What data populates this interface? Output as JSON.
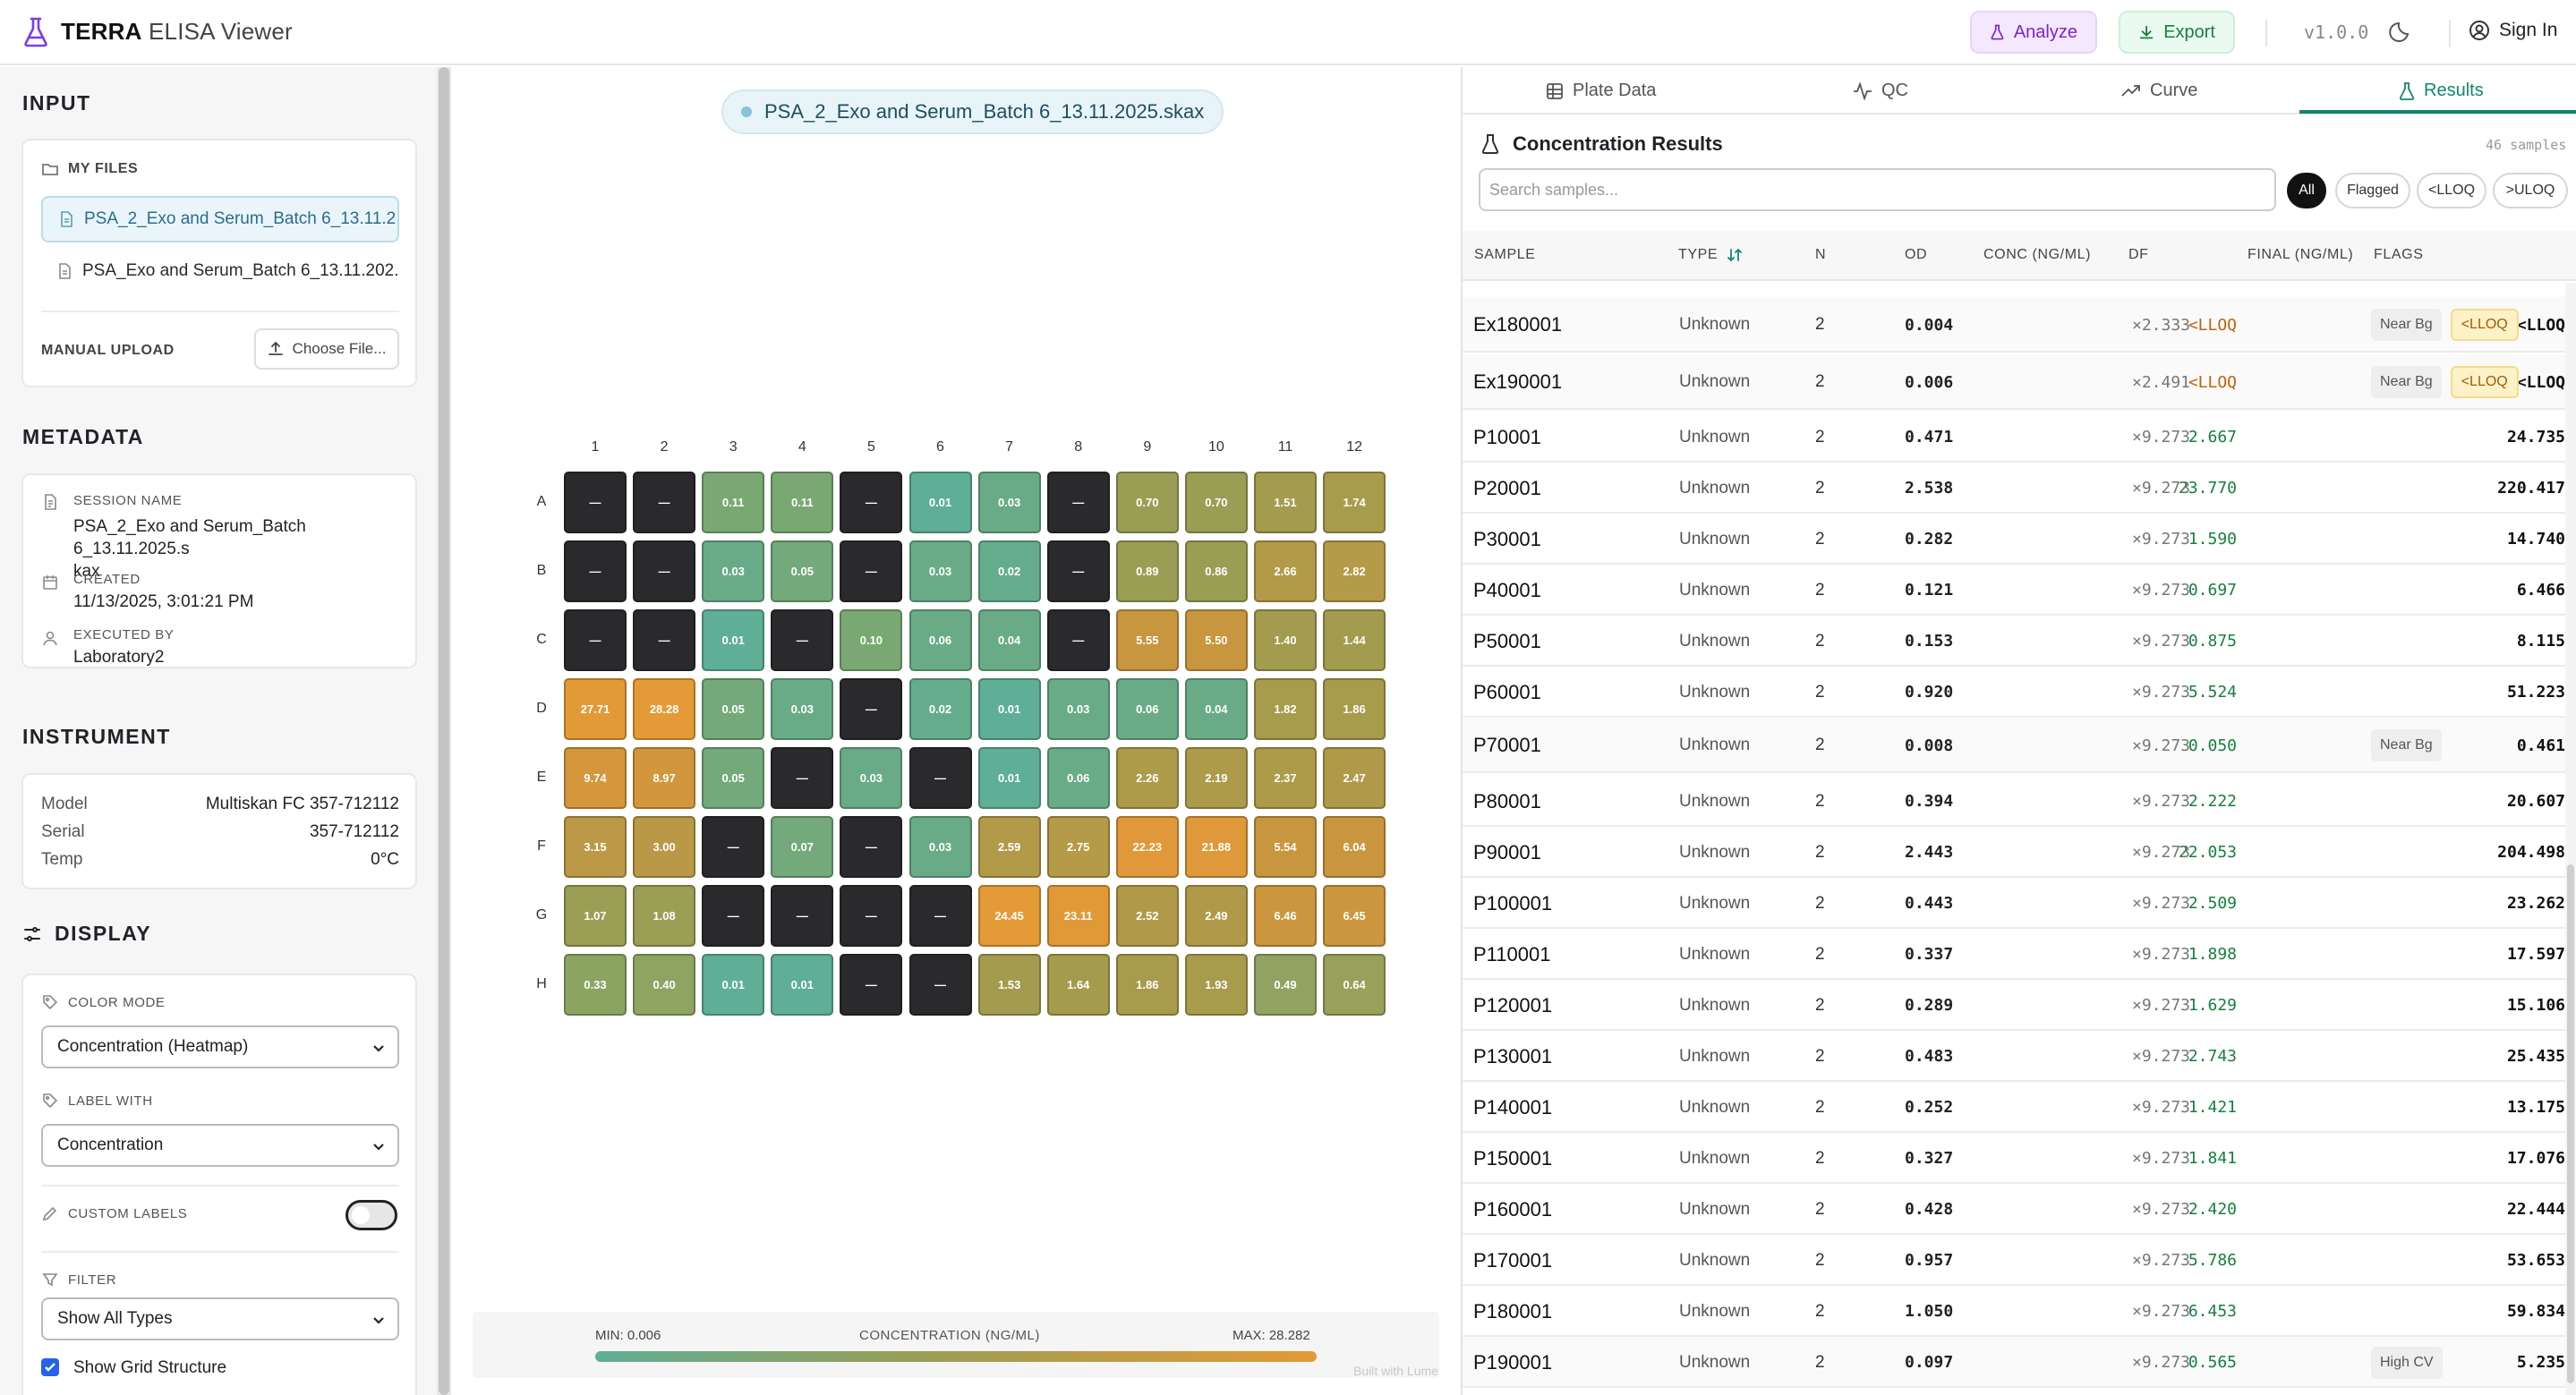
{
  "header": {
    "brand_bold": "TERRA",
    "brand_rest": "ELISA Viewer",
    "analyze_label": "Analyze",
    "export_label": "Export",
    "version": "v1.0.0",
    "signin_label": "Sign In"
  },
  "sidebar": {
    "input_title": "INPUT",
    "my_files_label": "MY FILES",
    "files": [
      {
        "name": "PSA_2_Exo and Serum_Batch 6_13.11.2...",
        "active": true
      },
      {
        "name": "PSA_Exo and Serum_Batch 6_13.11.202...",
        "active": false
      }
    ],
    "manual_upload_label": "MANUAL UPLOAD",
    "choose_file_label": "Choose File...",
    "metadata_title": "METADATA",
    "session_name_label": "SESSION NAME",
    "session_name_line1": "PSA_2_Exo and Serum_Batch 6_13.11.2025.s",
    "session_name_line2": "kax",
    "created_label": "CREATED",
    "created_value": "11/13/2025, 3:01:21 PM",
    "executed_by_label": "EXECUTED BY",
    "executed_by_value": "Laboratory2",
    "instrument_title": "INSTRUMENT",
    "instrument": [
      {
        "key": "Model",
        "value": "Multiskan FC 357-712112"
      },
      {
        "key": "Serial",
        "value": "357-712112"
      },
      {
        "key": "Temp",
        "value": "0°C"
      }
    ],
    "display_title": "DISPLAY",
    "color_mode_label": "COLOR MODE",
    "color_mode_value": "Concentration (Heatmap)",
    "label_with_label": "LABEL WITH",
    "label_with_value": "Concentration",
    "custom_labels_label": "CUSTOM LABELS",
    "custom_labels_on": false,
    "filter_label": "FILTER",
    "filter_value": "Show All Types",
    "show_grid_label": "Show Grid Structure",
    "show_grid_checked": true
  },
  "center": {
    "session_file": "PSA_2_Exo and Serum_Batch 6_13.11.2025.skax",
    "plate": {
      "columns": [
        "1",
        "2",
        "3",
        "4",
        "5",
        "6",
        "7",
        "8",
        "9",
        "10",
        "11",
        "12"
      ],
      "rows": [
        "A",
        "B",
        "C",
        "D",
        "E",
        "F",
        "G",
        "H"
      ],
      "cells": [
        [
          "—",
          "—",
          "0.11",
          "0.11",
          "—",
          "0.01",
          "0.03",
          "—",
          "0.70",
          "0.70",
          "1.51",
          "1.74"
        ],
        [
          "—",
          "—",
          "0.03",
          "0.05",
          "—",
          "0.03",
          "0.02",
          "—",
          "0.89",
          "0.86",
          "2.66",
          "2.82"
        ],
        [
          "—",
          "—",
          "0.01",
          "—",
          "0.10",
          "0.06",
          "0.04",
          "—",
          "5.55",
          "5.50",
          "1.40",
          "1.44"
        ],
        [
          "27.71",
          "28.28",
          "0.05",
          "0.03",
          "—",
          "0.02",
          "0.01",
          "0.03",
          "0.06",
          "0.04",
          "1.82",
          "1.86"
        ],
        [
          "9.74",
          "8.97",
          "0.05",
          "—",
          "0.03",
          "—",
          "0.01",
          "0.06",
          "2.26",
          "2.19",
          "2.37",
          "2.47"
        ],
        [
          "3.15",
          "3.00",
          "—",
          "0.07",
          "—",
          "0.03",
          "2.59",
          "2.75",
          "22.23",
          "21.88",
          "5.54",
          "6.04"
        ],
        [
          "1.07",
          "1.08",
          "—",
          "—",
          "—",
          "—",
          "24.45",
          "23.11",
          "2.52",
          "2.49",
          "6.46",
          "6.45"
        ],
        [
          "0.33",
          "0.40",
          "0.01",
          "0.01",
          "—",
          "—",
          "1.53",
          "1.64",
          "1.86",
          "1.93",
          "0.49",
          "0.64"
        ]
      ],
      "cell_colors": [
        [
          "#2a2a2c",
          "#2a2a2c",
          "#7aa873",
          "#7aa873",
          "#2a2a2c",
          "#5fae96",
          "#6aab87",
          "#2a2a2c",
          "#9a9e55",
          "#9a9e55",
          "#a39b4e",
          "#a79b4c"
        ],
        [
          "#2a2a2c",
          "#2a2a2c",
          "#6aab87",
          "#74a97b",
          "#2a2a2c",
          "#6aab87",
          "#65ac8d",
          "#2a2a2c",
          "#9a9e55",
          "#9a9e55",
          "#b39a49",
          "#b59a48"
        ],
        [
          "#2a2a2c",
          "#2a2a2c",
          "#5fae96",
          "#2a2a2c",
          "#7aa873",
          "#6aab87",
          "#6aab87",
          "#2a2a2c",
          "#c8963f",
          "#c8963f",
          "#a39b4e",
          "#a39b4e"
        ],
        [
          "#e29a37",
          "#e49a36",
          "#74a97b",
          "#6aab87",
          "#2a2a2c",
          "#65ac8d",
          "#5fae96",
          "#6aab87",
          "#6aab87",
          "#6aab87",
          "#a79b4c",
          "#a79b4c"
        ],
        [
          "#d4973b",
          "#d2973c",
          "#74a97b",
          "#2a2a2c",
          "#6aab87",
          "#2a2a2c",
          "#5fae96",
          "#6aab87",
          "#ad9b4b",
          "#ad9b4b",
          "#ae9b4a",
          "#b09a49"
        ],
        [
          "#bb9946",
          "#b99946",
          "#2a2a2c",
          "#74a97b",
          "#2a2a2c",
          "#6aab87",
          "#b39a48",
          "#b59a48",
          "#e0983a",
          "#df983a",
          "#c8963f",
          "#c9963f"
        ],
        [
          "#9b9e55",
          "#9b9e55",
          "#2a2a2c",
          "#2a2a2c",
          "#2a2a2c",
          "#2a2a2c",
          "#e39a37",
          "#e19938",
          "#b09a49",
          "#b09a49",
          "#cb963e",
          "#cb963e"
        ],
        [
          "#8ca462",
          "#8ea462",
          "#5fae96",
          "#5fae96",
          "#2a2a2c",
          "#2a2a2c",
          "#a39b4e",
          "#a59b4d",
          "#a89b4c",
          "#a99b4c",
          "#90a362",
          "#98a05a"
        ]
      ]
    },
    "legend": {
      "min_label": "MIN: 0.006",
      "title": "CONCENTRATION (NG/ML)",
      "max_label": "MAX: 28.282"
    },
    "built_with": "Built with Lume"
  },
  "results": {
    "tabs": [
      "Plate Data",
      "QC",
      "Curve",
      "Results"
    ],
    "active_tab": "Results",
    "title": "Concentration Results",
    "sample_count": "46 samples",
    "search_placeholder": "Search samples...",
    "filters": [
      "All",
      "Flagged",
      "<LLOQ",
      ">ULOQ"
    ],
    "active_filter": "All",
    "columns": [
      "SAMPLE",
      "TYPE",
      "N",
      "OD",
      "CONC (NG/ML)",
      "DF",
      "FINAL (NG/ML)",
      "FLAGS"
    ],
    "rows": [
      {
        "sample": "Ex180001",
        "type": "Unknown",
        "n": "2",
        "od": "0.004",
        "conc": "<LLOQ",
        "df": "×2.333",
        "final": "<LLOQ",
        "flags": [
          "Near Bg",
          "<LLOQ"
        ]
      },
      {
        "sample": "Ex190001",
        "type": "Unknown",
        "n": "2",
        "od": "0.006",
        "conc": "<LLOQ",
        "df": "×2.491",
        "final": "<LLOQ",
        "flags": [
          "Near Bg",
          "<LLOQ"
        ]
      },
      {
        "sample": "P10001",
        "type": "Unknown",
        "n": "2",
        "od": "0.471",
        "conc": "2.667",
        "df": "×9.273",
        "final": "24.735",
        "flags": []
      },
      {
        "sample": "P20001",
        "type": "Unknown",
        "n": "2",
        "od": "2.538",
        "conc": "23.770",
        "df": "×9.273",
        "final": "220.417",
        "flags": []
      },
      {
        "sample": "P30001",
        "type": "Unknown",
        "n": "2",
        "od": "0.282",
        "conc": "1.590",
        "df": "×9.273",
        "final": "14.740",
        "flags": []
      },
      {
        "sample": "P40001",
        "type": "Unknown",
        "n": "2",
        "od": "0.121",
        "conc": "0.697",
        "df": "×9.273",
        "final": "6.466",
        "flags": []
      },
      {
        "sample": "P50001",
        "type": "Unknown",
        "n": "2",
        "od": "0.153",
        "conc": "0.875",
        "df": "×9.273",
        "final": "8.115",
        "flags": []
      },
      {
        "sample": "P60001",
        "type": "Unknown",
        "n": "2",
        "od": "0.920",
        "conc": "5.524",
        "df": "×9.273",
        "final": "51.223",
        "flags": []
      },
      {
        "sample": "P70001",
        "type": "Unknown",
        "n": "2",
        "od": "0.008",
        "conc": "0.050",
        "df": "×9.273",
        "final": "0.461",
        "flags": [
          "Near Bg"
        ]
      },
      {
        "sample": "P80001",
        "type": "Unknown",
        "n": "2",
        "od": "0.394",
        "conc": "2.222",
        "df": "×9.273",
        "final": "20.607",
        "flags": []
      },
      {
        "sample": "P90001",
        "type": "Unknown",
        "n": "2",
        "od": "2.443",
        "conc": "22.053",
        "df": "×9.273",
        "final": "204.498",
        "flags": []
      },
      {
        "sample": "P100001",
        "type": "Unknown",
        "n": "2",
        "od": "0.443",
        "conc": "2.509",
        "df": "×9.273",
        "final": "23.262",
        "flags": []
      },
      {
        "sample": "P110001",
        "type": "Unknown",
        "n": "2",
        "od": "0.337",
        "conc": "1.898",
        "df": "×9.273",
        "final": "17.597",
        "flags": []
      },
      {
        "sample": "P120001",
        "type": "Unknown",
        "n": "2",
        "od": "0.289",
        "conc": "1.629",
        "df": "×9.273",
        "final": "15.106",
        "flags": []
      },
      {
        "sample": "P130001",
        "type": "Unknown",
        "n": "2",
        "od": "0.483",
        "conc": "2.743",
        "df": "×9.273",
        "final": "25.435",
        "flags": []
      },
      {
        "sample": "P140001",
        "type": "Unknown",
        "n": "2",
        "od": "0.252",
        "conc": "1.421",
        "df": "×9.273",
        "final": "13.175",
        "flags": []
      },
      {
        "sample": "P150001",
        "type": "Unknown",
        "n": "2",
        "od": "0.327",
        "conc": "1.841",
        "df": "×9.273",
        "final": "17.076",
        "flags": []
      },
      {
        "sample": "P160001",
        "type": "Unknown",
        "n": "2",
        "od": "0.428",
        "conc": "2.420",
        "df": "×9.273",
        "final": "22.444",
        "flags": []
      },
      {
        "sample": "P170001",
        "type": "Unknown",
        "n": "2",
        "od": "0.957",
        "conc": "5.786",
        "df": "×9.273",
        "final": "53.653",
        "flags": []
      },
      {
        "sample": "P180001",
        "type": "Unknown",
        "n": "2",
        "od": "1.050",
        "conc": "6.453",
        "df": "×9.273",
        "final": "59.834",
        "flags": []
      },
      {
        "sample": "P190001",
        "type": "Unknown",
        "n": "2",
        "od": "0.097",
        "conc": "0.565",
        "df": "×9.273",
        "final": "5.235",
        "flags": [
          "High CV"
        ]
      }
    ]
  },
  "colors": {
    "accent_teal": "#12866e",
    "analyze_purple": "#7e22ce",
    "export_green": "#15803d",
    "lloq_orange": "#c2620a",
    "heatmap_low": "#5fae96",
    "heatmap_high": "#e49a36",
    "empty_well": "#2a2a2c"
  },
  "icons": {
    "logo": "flask-icon",
    "analyze": "flask-icon",
    "export": "download-icon",
    "theme": "moon-icon",
    "signin": "user-circle-icon"
  }
}
